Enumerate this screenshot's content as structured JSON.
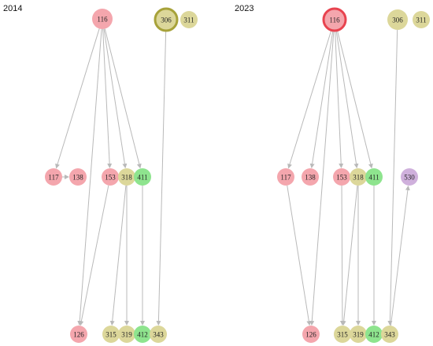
{
  "panels": [
    {
      "title": "2014",
      "nodes": [
        {
          "id": "116",
          "color": "#f4a6ad",
          "outline": ""
        },
        {
          "id": "306",
          "color": "#dcd79a",
          "outline": "#a7a23a"
        },
        {
          "id": "311",
          "color": "#dcd79a",
          "outline": ""
        },
        {
          "id": "117",
          "color": "#f4a6ad",
          "outline": ""
        },
        {
          "id": "138",
          "color": "#f4a6ad",
          "outline": ""
        },
        {
          "id": "153",
          "color": "#f4a6ad",
          "outline": ""
        },
        {
          "id": "318",
          "color": "#dcd79a",
          "outline": ""
        },
        {
          "id": "411",
          "color": "#8ee48e",
          "outline": ""
        },
        {
          "id": "126",
          "color": "#f4a6ad",
          "outline": ""
        },
        {
          "id": "315",
          "color": "#dcd79a",
          "outline": ""
        },
        {
          "id": "319",
          "color": "#dcd79a",
          "outline": ""
        },
        {
          "id": "412",
          "color": "#8ee48e",
          "outline": ""
        },
        {
          "id": "343",
          "color": "#dcd79a",
          "outline": ""
        }
      ],
      "edges": [
        [
          "116",
          "117"
        ],
        [
          "116",
          "153"
        ],
        [
          "116",
          "318"
        ],
        [
          "116",
          "411"
        ],
        [
          "116",
          "126"
        ],
        [
          "117",
          "138"
        ],
        [
          "153",
          "126"
        ],
        [
          "318",
          "315"
        ],
        [
          "318",
          "319"
        ],
        [
          "411",
          "412"
        ],
        [
          "306",
          "343"
        ]
      ]
    },
    {
      "title": "2023",
      "nodes": [
        {
          "id": "116",
          "color": "#f4a6ad",
          "outline": "#e8434f"
        },
        {
          "id": "306",
          "color": "#dcd79a",
          "outline": ""
        },
        {
          "id": "311",
          "color": "#dcd79a",
          "outline": ""
        },
        {
          "id": "117",
          "color": "#f4a6ad",
          "outline": ""
        },
        {
          "id": "138",
          "color": "#f4a6ad",
          "outline": ""
        },
        {
          "id": "153",
          "color": "#f4a6ad",
          "outline": ""
        },
        {
          "id": "318",
          "color": "#dcd79a",
          "outline": ""
        },
        {
          "id": "411",
          "color": "#8ee48e",
          "outline": ""
        },
        {
          "id": "530",
          "color": "#cfb0dc",
          "outline": ""
        },
        {
          "id": "126",
          "color": "#f4a6ad",
          "outline": ""
        },
        {
          "id": "315",
          "color": "#dcd79a",
          "outline": ""
        },
        {
          "id": "319",
          "color": "#dcd79a",
          "outline": ""
        },
        {
          "id": "412",
          "color": "#8ee48e",
          "outline": ""
        },
        {
          "id": "343",
          "color": "#dcd79a",
          "outline": ""
        }
      ],
      "edges": [
        [
          "116",
          "117"
        ],
        [
          "116",
          "138"
        ],
        [
          "116",
          "153"
        ],
        [
          "116",
          "318"
        ],
        [
          "116",
          "411"
        ],
        [
          "116",
          "126"
        ],
        [
          "117",
          "126"
        ],
        [
          "153",
          "315"
        ],
        [
          "318",
          "315"
        ],
        [
          "318",
          "319"
        ],
        [
          "411",
          "412"
        ],
        [
          "306",
          "343"
        ],
        [
          "343",
          "530"
        ]
      ]
    }
  ],
  "colors": {
    "edge": "#b9b9b9"
  }
}
